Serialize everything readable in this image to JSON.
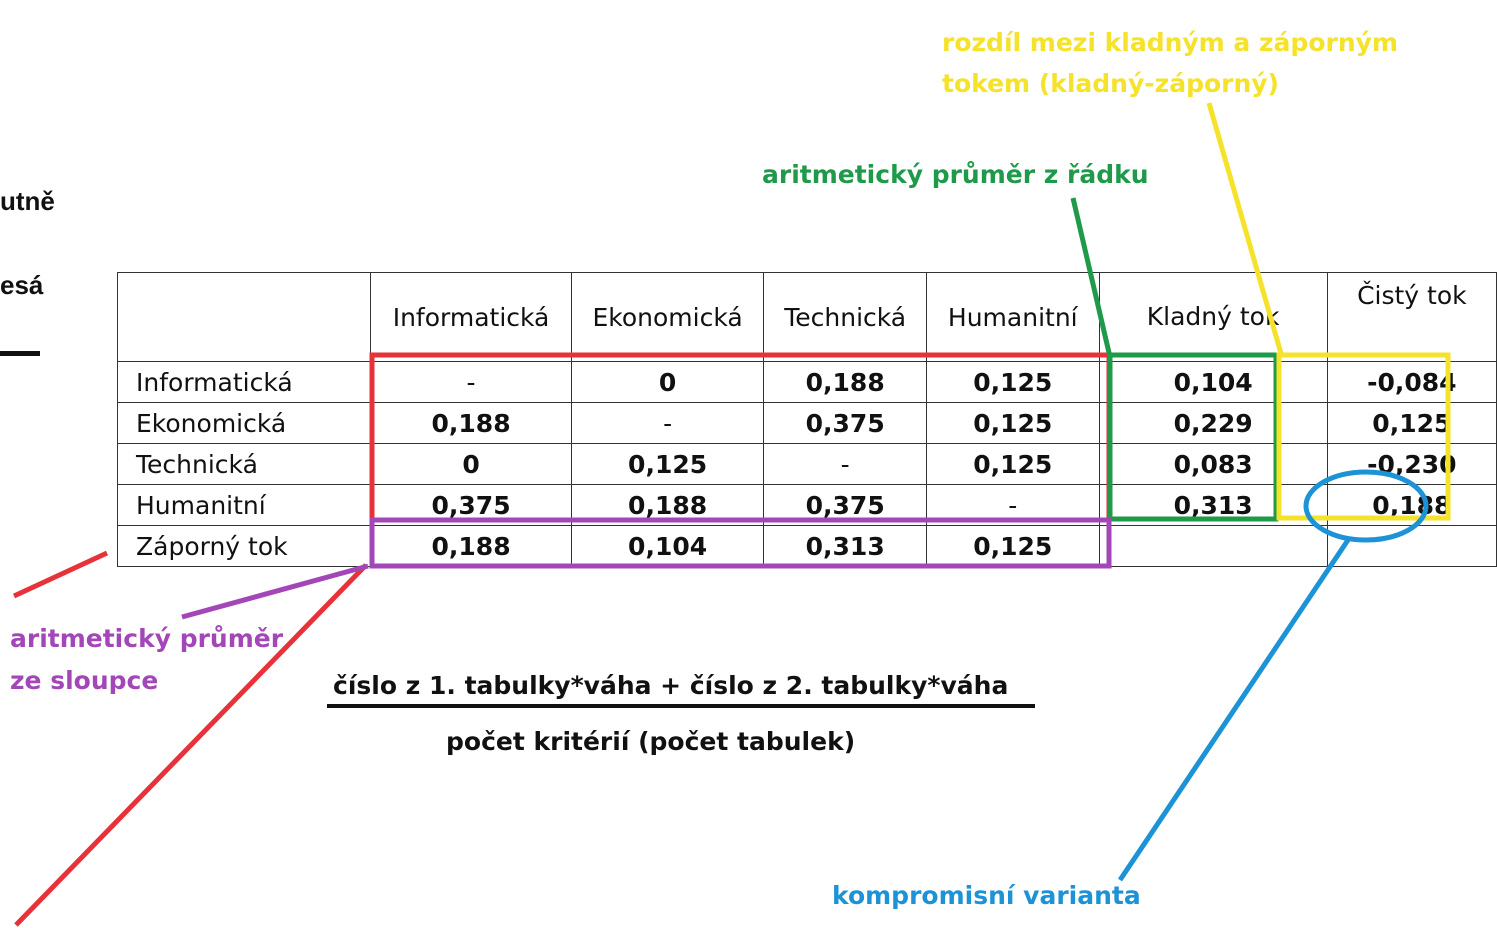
{
  "edge_text": {
    "line1": "utně",
    "line2": "esá"
  },
  "table": {
    "headers": [
      "",
      "Informatická",
      "Ekonomická",
      "Technická",
      "Humanitní",
      "Kladný tok",
      "Čistý tok"
    ],
    "rows": [
      {
        "label": "Informatická",
        "cells": [
          "-",
          "0",
          "0,188",
          "0,125",
          "0,104",
          "-0,084"
        ]
      },
      {
        "label": "Ekonomická",
        "cells": [
          "0,188",
          "-",
          "0,375",
          "0,125",
          "0,229",
          "0,125"
        ]
      },
      {
        "label": "Technická",
        "cells": [
          "0",
          "0,125",
          "-",
          "0,125",
          "0,083",
          "-0,230"
        ]
      },
      {
        "label": "Humanitní",
        "cells": [
          "0,375",
          "0,188",
          "0,375",
          "-",
          "0,313",
          "0,188"
        ]
      },
      {
        "label": "Záporný tok",
        "cells": [
          "0,188",
          "0,104",
          "0,313",
          "0,125",
          "",
          ""
        ]
      }
    ]
  },
  "annotations": {
    "yellow_line1": "rozdíl mezi kladným a záporným",
    "yellow_line2": "tokem (kladný-záporný)",
    "green": "aritmetický průměr z řádku",
    "purple_line1": "aritmetický průměr",
    "purple_line2": "ze sloupce",
    "blue": "kompromisní varianta"
  },
  "formula": {
    "numerator": "číslo z 1. tabulky*váha + číslo z 2. tabulky*váha",
    "denominator": "počet kritérií (počet tabulek)"
  },
  "colors": {
    "red": "#e8323a",
    "green": "#1f9a4a",
    "yellow": "#f5e22a",
    "purple": "#a347b8",
    "blue": "#1c93d6"
  }
}
